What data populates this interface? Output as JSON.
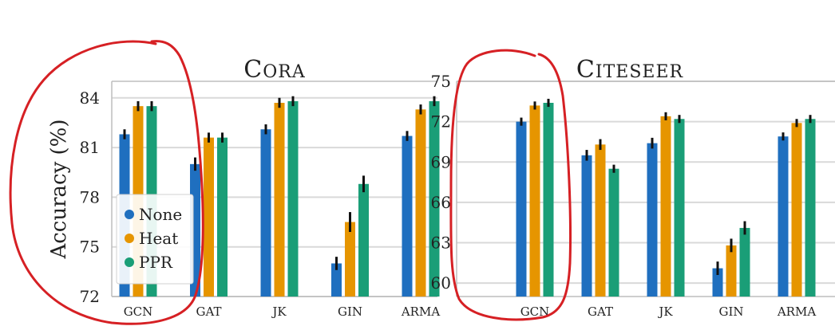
{
  "chart_data": [
    {
      "type": "bar",
      "title": "CORA",
      "ylabel": "Accuracy (%)",
      "xlabel": "",
      "ylim": [
        72,
        85
      ],
      "yticks": [
        72,
        75,
        78,
        81,
        84
      ],
      "categories": [
        "GCN",
        "GAT",
        "JK",
        "GIN",
        "ARMA"
      ],
      "grid": true,
      "legend": "bottom-left",
      "series": [
        {
          "name": "None",
          "color": "#1f6fbf",
          "values": [
            81.8,
            80.0,
            82.1,
            74.0,
            81.7
          ],
          "errors": [
            0.3,
            0.4,
            0.3,
            0.4,
            0.3
          ]
        },
        {
          "name": "Heat",
          "color": "#e69500",
          "values": [
            83.5,
            81.6,
            83.7,
            76.5,
            83.3
          ],
          "errors": [
            0.3,
            0.3,
            0.3,
            0.6,
            0.3
          ]
        },
        {
          "name": "PPR",
          "color": "#1a9e77",
          "values": [
            83.5,
            81.6,
            83.8,
            78.8,
            83.8
          ],
          "errors": [
            0.3,
            0.3,
            0.3,
            0.5,
            0.3
          ]
        }
      ]
    },
    {
      "type": "bar",
      "title": "CITESEER",
      "ylabel": "",
      "xlabel": "",
      "ylim": [
        59,
        75
      ],
      "yticks": [
        60,
        63,
        66,
        69,
        72,
        75
      ],
      "categories": [
        "GCN",
        "GAT",
        "JK",
        "GIN",
        "ARMA"
      ],
      "grid": true,
      "series": [
        {
          "name": "None",
          "color": "#1f6fbf",
          "values": [
            72.0,
            69.5,
            70.4,
            61.1,
            70.9
          ],
          "errors": [
            0.3,
            0.4,
            0.4,
            0.5,
            0.3
          ]
        },
        {
          "name": "Heat",
          "color": "#e69500",
          "values": [
            73.2,
            70.3,
            72.4,
            62.8,
            71.9
          ],
          "errors": [
            0.3,
            0.4,
            0.3,
            0.5,
            0.3
          ]
        },
        {
          "name": "PPR",
          "color": "#1a9e77",
          "values": [
            73.4,
            68.5,
            72.2,
            64.1,
            72.2
          ],
          "errors": [
            0.3,
            0.3,
            0.3,
            0.5,
            0.3
          ]
        }
      ]
    }
  ],
  "legend": {
    "items": [
      {
        "label": "None",
        "color": "#1f6fbf"
      },
      {
        "label": "Heat",
        "color": "#e69500"
      },
      {
        "label": "PPR",
        "color": "#1a9e77"
      }
    ]
  },
  "annotations": {
    "stroke": "#d62024"
  }
}
